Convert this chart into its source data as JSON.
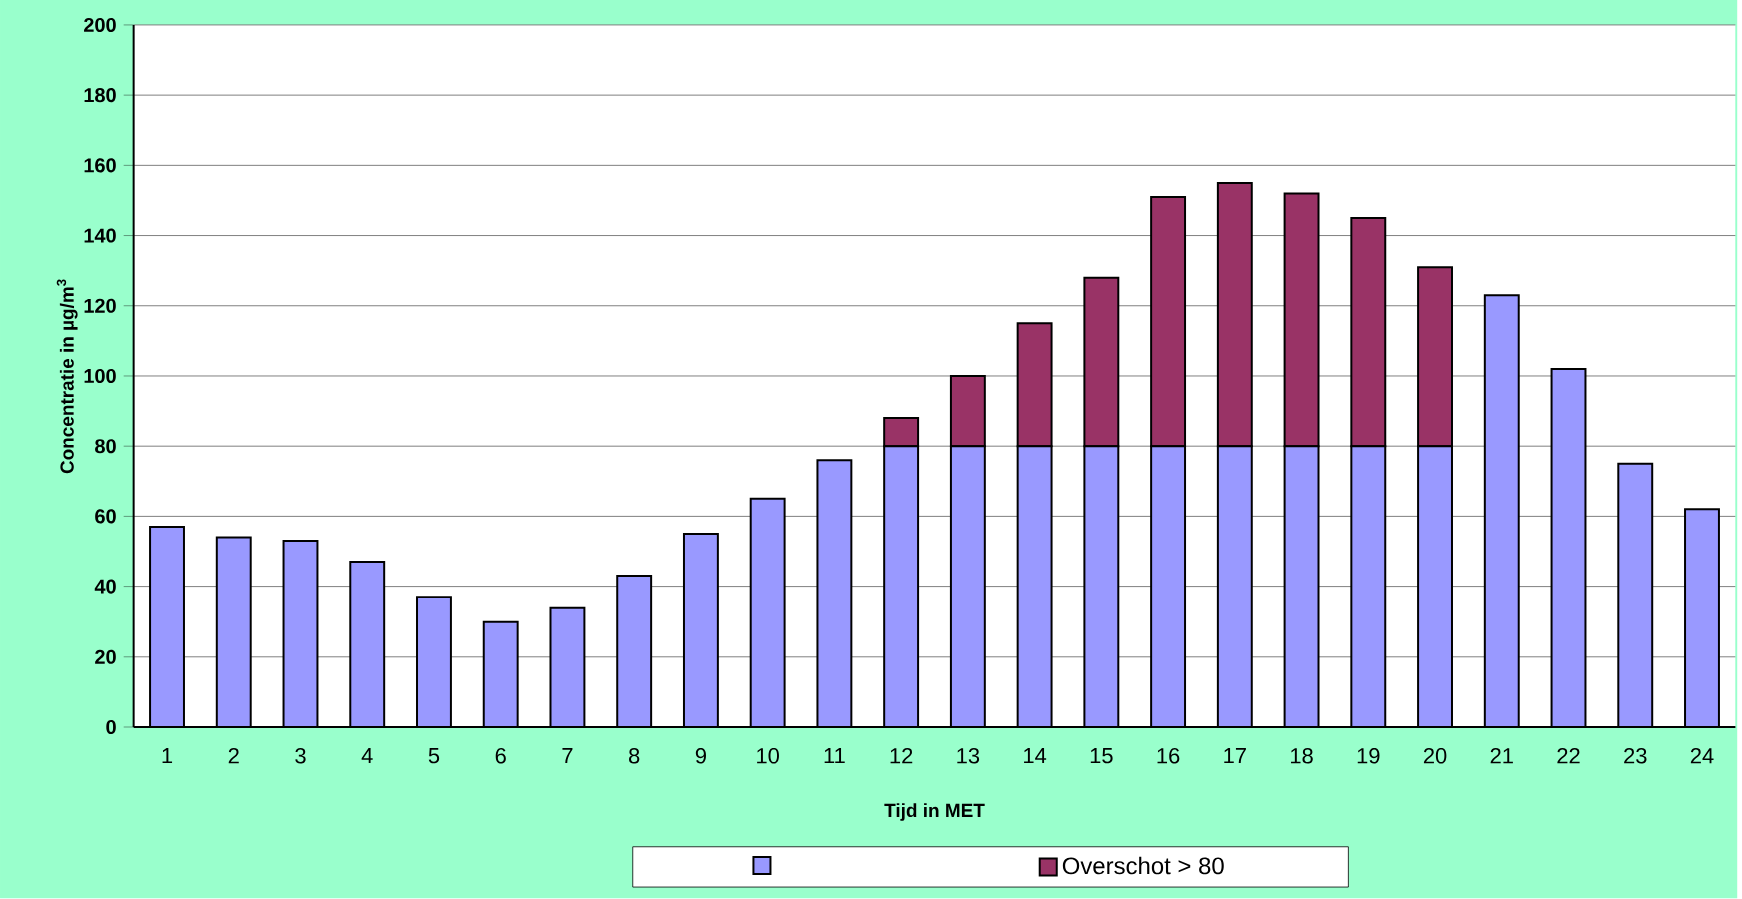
{
  "chart_data": {
    "type": "bar",
    "stacked": true,
    "xlabel": "Tijd in MET",
    "ylabel": "Concentratie in µg/m$^{3}$",
    "categories": [
      "1",
      "2",
      "3",
      "4",
      "5",
      "6",
      "7",
      "8",
      "9",
      "10",
      "11",
      "12",
      "13",
      "14",
      "15",
      "16",
      "17",
      "18",
      "19",
      "20",
      "21",
      "22",
      "23",
      "24"
    ],
    "series": [
      {
        "color": "#9999ff",
        "values": [
          57,
          54,
          53,
          47,
          37,
          30,
          34,
          43,
          55,
          65,
          76,
          80,
          80,
          80,
          80,
          80,
          80,
          80,
          80,
          80,
          123,
          102,
          75,
          62
        ]
      },
      {
        "name": "Overschot > 80",
        "color": "#993366",
        "values": [
          0,
          0,
          0,
          0,
          0,
          0,
          0,
          0,
          0,
          0,
          0,
          8,
          20,
          35,
          48,
          71,
          75,
          72,
          65,
          51,
          0,
          0,
          0,
          0
        ]
      }
    ],
    "ylim": [
      0,
      200
    ],
    "yticks": [
      0,
      20,
      40,
      60,
      80,
      100,
      120,
      140,
      160,
      180,
      200
    ],
    "grid": "y",
    "legend": "bottom"
  }
}
